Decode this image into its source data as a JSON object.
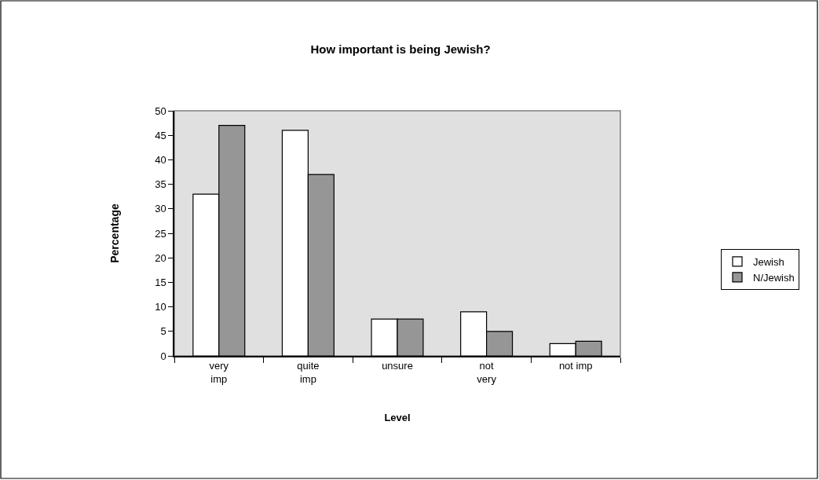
{
  "chart_data": {
    "type": "bar",
    "title": "How important is being Jewish?",
    "xlabel": "Level",
    "ylabel": "Percentage",
    "categories": [
      "very imp",
      "quite imp",
      "unsure",
      "not very",
      "not imp"
    ],
    "series": [
      {
        "name": "Jewish",
        "color": "#ffffff",
        "values": [
          33,
          46,
          7.5,
          9,
          2.5
        ]
      },
      {
        "name": "N/Jewish",
        "color": "#969696",
        "values": [
          47,
          37,
          7.5,
          5,
          3
        ]
      }
    ],
    "ylim": [
      0,
      50
    ],
    "yticks": [
      0,
      5,
      10,
      15,
      20,
      25,
      30,
      35,
      40,
      45,
      50
    ],
    "legend": "right"
  }
}
